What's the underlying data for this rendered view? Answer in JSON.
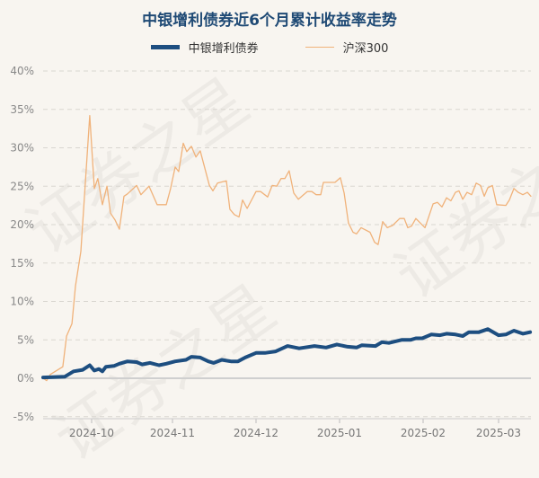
{
  "chart_data": {
    "type": "line",
    "title": "中银增利债券近6个月累计收益率走势",
    "xlabel": "",
    "ylabel": "",
    "x_unit": "days since 2024-09-13",
    "xlim": [
      0,
      181
    ],
    "ylim": [
      -5,
      40
    ],
    "y_ticks": [
      -5,
      0,
      5,
      10,
      15,
      20,
      25,
      30,
      35,
      40
    ],
    "y_tick_labels": [
      "-5%",
      "0%",
      "5%",
      "10%",
      "15%",
      "20%",
      "25%",
      "30%",
      "35%",
      "40%"
    ],
    "x_ticks": [
      18,
      48,
      79,
      110,
      141,
      169
    ],
    "x_tick_labels": [
      "2024-10",
      "2024-11",
      "2024-12",
      "2025-01",
      "2025-02",
      "2025-03"
    ],
    "grid": true,
    "legend_position": "top-center",
    "series": [
      {
        "name": "中银增利债券",
        "color": "#1d4e80",
        "points": [
          [
            0,
            0.1
          ],
          [
            8,
            0.2
          ],
          [
            11.3,
            0.9
          ],
          [
            14.7,
            1.1
          ],
          [
            17.3,
            1.7
          ],
          [
            19,
            1.0
          ],
          [
            20.7,
            1.2
          ],
          [
            22,
            0.9
          ],
          [
            23.3,
            1.5
          ],
          [
            26.3,
            1.6
          ],
          [
            28.3,
            1.9
          ],
          [
            31.3,
            2.2
          ],
          [
            34.7,
            2.1
          ],
          [
            36.7,
            1.8
          ],
          [
            39.7,
            2.0
          ],
          [
            43,
            1.7
          ],
          [
            45.7,
            1.9
          ],
          [
            49,
            2.2
          ],
          [
            53,
            2.4
          ],
          [
            55,
            2.8
          ],
          [
            58.3,
            2.7
          ],
          [
            61.3,
            2.2
          ],
          [
            63.3,
            2.0
          ],
          [
            66.3,
            2.4
          ],
          [
            69.7,
            2.2
          ],
          [
            72.3,
            2.2
          ],
          [
            75,
            2.7
          ],
          [
            79,
            3.3
          ],
          [
            82.3,
            3.3
          ],
          [
            86.3,
            3.5
          ],
          [
            90.7,
            4.2
          ],
          [
            95,
            3.9
          ],
          [
            100.7,
            4.2
          ],
          [
            105,
            4.0
          ],
          [
            109,
            4.4
          ],
          [
            113,
            4.1
          ],
          [
            116.3,
            4.0
          ],
          [
            118.3,
            4.3
          ],
          [
            123.3,
            4.2
          ],
          [
            125.7,
            4.7
          ],
          [
            128.3,
            4.6
          ],
          [
            133,
            5.0
          ],
          [
            136.3,
            5.0
          ],
          [
            138.3,
            5.2
          ],
          [
            140.7,
            5.2
          ],
          [
            144,
            5.7
          ],
          [
            147.3,
            5.6
          ],
          [
            149.7,
            5.8
          ],
          [
            153,
            5.7
          ],
          [
            155.7,
            5.5
          ],
          [
            158,
            6.0
          ],
          [
            161.7,
            6.0
          ],
          [
            165,
            6.4
          ],
          [
            169,
            5.6
          ],
          [
            171.7,
            5.7
          ],
          [
            174.7,
            6.2
          ],
          [
            178,
            5.8
          ],
          [
            180.7,
            6.0
          ]
        ]
      },
      {
        "name": "沪深300",
        "color": "#f0b27a",
        "points": [
          [
            0,
            0
          ],
          [
            1.3,
            -0.3
          ],
          [
            2.7,
            0.5
          ],
          [
            5,
            1.0
          ],
          [
            7.3,
            1.5
          ],
          [
            8.7,
            5.5
          ],
          [
            10.7,
            7.1
          ],
          [
            12,
            12
          ],
          [
            14,
            16.5
          ],
          [
            17.3,
            34.2
          ],
          [
            19,
            24.7
          ],
          [
            20.3,
            26
          ],
          [
            22,
            22.6
          ],
          [
            23.7,
            25
          ],
          [
            25,
            21.5
          ],
          [
            26.7,
            20.6
          ],
          [
            28.3,
            19.4
          ],
          [
            30,
            23.7
          ],
          [
            31.3,
            24
          ],
          [
            34.7,
            25.1
          ],
          [
            36.3,
            23.9
          ],
          [
            39.3,
            25
          ],
          [
            42.3,
            22.6
          ],
          [
            45.7,
            22.6
          ],
          [
            47.3,
            24.7
          ],
          [
            49,
            27.5
          ],
          [
            50.3,
            26.9
          ],
          [
            52,
            30.6
          ],
          [
            53.3,
            29.5
          ],
          [
            55,
            30.2
          ],
          [
            56.7,
            28.8
          ],
          [
            58.3,
            29.6
          ],
          [
            61.7,
            25.1
          ],
          [
            63,
            24.4
          ],
          [
            64.7,
            25.4
          ],
          [
            68,
            25.7
          ],
          [
            69.3,
            22
          ],
          [
            71,
            21.3
          ],
          [
            72.7,
            21
          ],
          [
            74,
            23.2
          ],
          [
            75.7,
            22.1
          ],
          [
            79,
            24.3
          ],
          [
            80.7,
            24.3
          ],
          [
            83.3,
            23.6
          ],
          [
            85,
            25.1
          ],
          [
            86.7,
            25
          ],
          [
            88.3,
            26
          ],
          [
            89.7,
            26
          ],
          [
            91.3,
            27
          ],
          [
            93,
            24.1
          ],
          [
            94.7,
            23.3
          ],
          [
            98,
            24.3
          ],
          [
            99.7,
            24.3
          ],
          [
            101.3,
            23.9
          ],
          [
            103,
            23.9
          ],
          [
            104,
            25.5
          ],
          [
            108.3,
            25.5
          ],
          [
            110.3,
            26.1
          ],
          [
            111.7,
            24.1
          ],
          [
            113.3,
            20.2
          ],
          [
            115,
            19
          ],
          [
            116.3,
            18.8
          ],
          [
            118,
            19.6
          ],
          [
            121.3,
            19
          ],
          [
            123,
            17.7
          ],
          [
            124.3,
            17.4
          ],
          [
            126,
            20.4
          ],
          [
            127.7,
            19.6
          ],
          [
            129.7,
            19.9
          ],
          [
            132.3,
            20.8
          ],
          [
            134,
            20.8
          ],
          [
            135.3,
            19.6
          ],
          [
            136.7,
            19.8
          ],
          [
            138.3,
            20.8
          ],
          [
            141.7,
            19.6
          ],
          [
            144.7,
            22.7
          ],
          [
            146.3,
            22.9
          ],
          [
            148,
            22.3
          ],
          [
            149.7,
            23.5
          ],
          [
            151.3,
            23.1
          ],
          [
            153,
            24.2
          ],
          [
            154.3,
            24.4
          ],
          [
            155.7,
            23.3
          ],
          [
            157.3,
            24.2
          ],
          [
            159,
            23.9
          ],
          [
            160.7,
            25.4
          ],
          [
            162.3,
            25.1
          ],
          [
            163.7,
            23.7
          ],
          [
            165,
            24.8
          ],
          [
            166.7,
            25.1
          ],
          [
            168.3,
            22.6
          ],
          [
            171.7,
            22.5
          ],
          [
            173,
            23.2
          ],
          [
            174.7,
            24.7
          ],
          [
            176.3,
            24.2
          ],
          [
            178,
            23.9
          ],
          [
            179.7,
            24.2
          ],
          [
            181,
            23.7
          ]
        ]
      }
    ]
  },
  "watermark": "证券之星"
}
